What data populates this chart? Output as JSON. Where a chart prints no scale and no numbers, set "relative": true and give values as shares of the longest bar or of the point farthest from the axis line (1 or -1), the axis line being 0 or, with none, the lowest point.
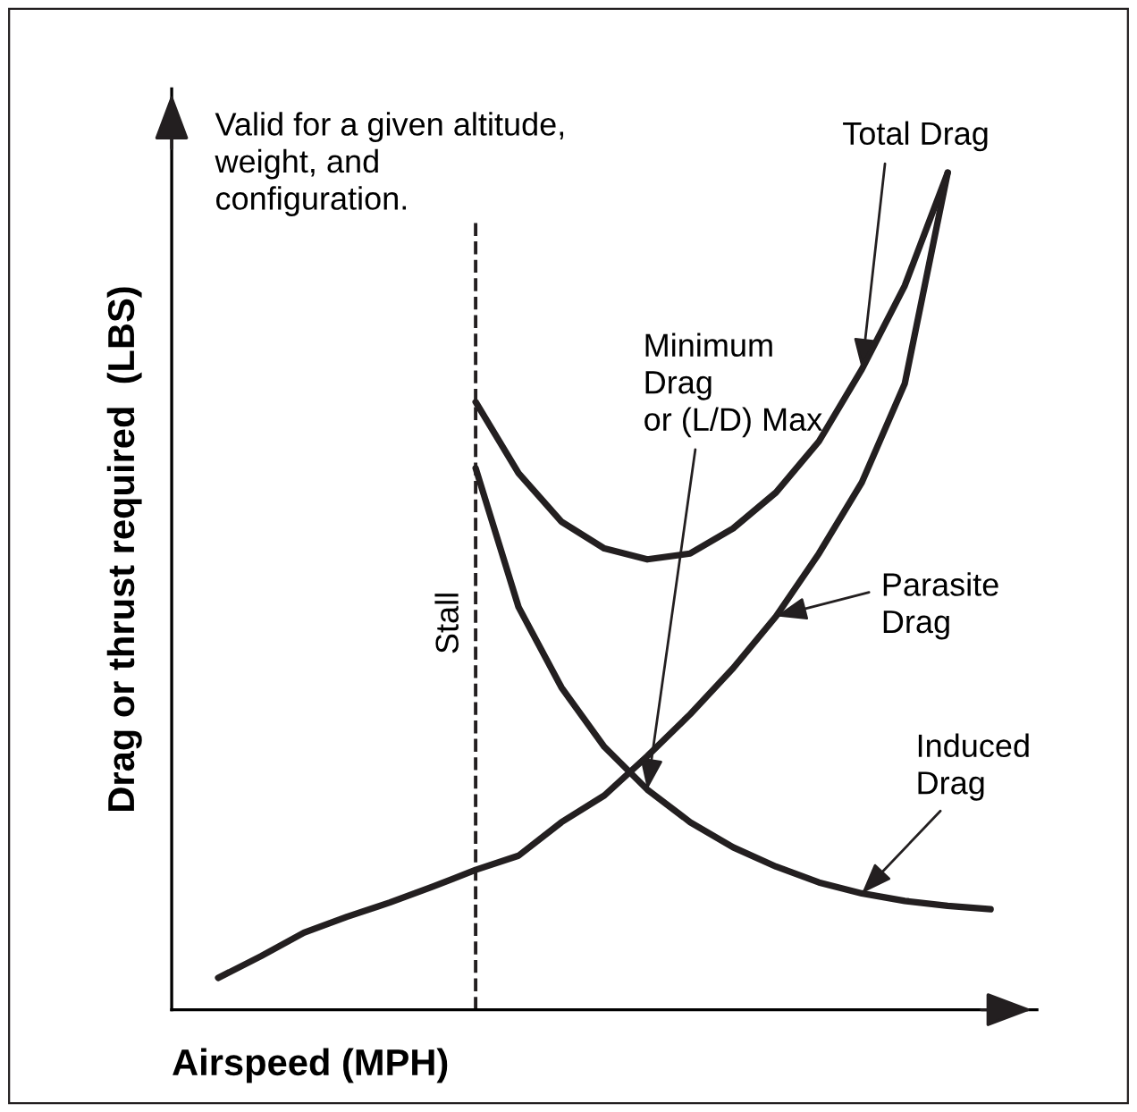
{
  "chart_data": {
    "type": "line",
    "relative": true,
    "xlabel": "Airspeed (MPH)",
    "ylabel": "Drag or thrust required  (LBS)",
    "marker": "none",
    "line_style": "solid",
    "categories": [
      null,
      null,
      null,
      null,
      null,
      null,
      null,
      null,
      null,
      null,
      null,
      null,
      null,
      null,
      null,
      null,
      null,
      null,
      null
    ],
    "series": [
      {
        "color": "#231f20",
        "values": [
          null,
          null,
          null,
          null,
          null,
          null,
          0.726,
          0.641,
          0.583,
          0.551,
          0.538,
          0.545,
          0.575,
          0.618,
          0.679,
          0.765,
          0.865,
          1.0,
          null
        ]
      },
      {
        "color": "#231f20",
        "values": [
          0.038,
          0.064,
          0.092,
          0.111,
          0.128,
          0.147,
          0.167,
          0.184,
          0.224,
          0.256,
          0.303,
          0.353,
          0.408,
          0.47,
          0.545,
          0.63,
          0.748,
          1.0,
          null
        ]
      },
      {
        "color": "#231f20",
        "values": [
          null,
          null,
          null,
          null,
          null,
          null,
          0.647,
          0.481,
          0.385,
          0.314,
          0.263,
          0.224,
          0.194,
          0.171,
          0.152,
          0.139,
          0.13,
          0.124,
          0.12
        ]
      }
    ],
    "annotations": [
      "Valid for a given altitude,\nweight, and\nconfiguration.",
      "Total Drag",
      "Minimum\nDrag\nor (L/D) Max",
      "Parasite\nDrag",
      "Induced\nDrag",
      "Stall"
    ]
  }
}
